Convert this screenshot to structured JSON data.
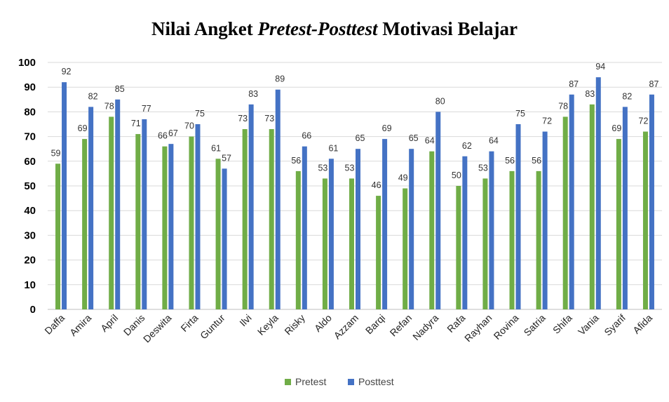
{
  "chart_data": {
    "type": "bar",
    "title_parts": [
      {
        "text": "Nilai Angket ",
        "italic": false
      },
      {
        "text": "Pretest-Posttest",
        "italic": true
      },
      {
        "text": " Motivasi Belajar",
        "italic": false
      }
    ],
    "categories": [
      "Daffa",
      "Amira",
      "April",
      "Danis",
      "Deswita",
      "Firta",
      "Guntur",
      "Ilvi",
      "Keyla",
      "Risky",
      "Aldo",
      "Azzam",
      "Barqi",
      "Refan",
      "Nadyra",
      "Rafa",
      "Rayhan",
      "Rovina",
      "Satria",
      "Shifa",
      "Vania",
      "Syarif",
      "Afida"
    ],
    "series": [
      {
        "name": "Pretest",
        "color": "#70AD47",
        "values": [
          59,
          69,
          78,
          71,
          66,
          70,
          61,
          73,
          73,
          56,
          53,
          53,
          46,
          49,
          64,
          50,
          53,
          56,
          56,
          78,
          83,
          69,
          72
        ]
      },
      {
        "name": "Posttest",
        "color": "#4472C4",
        "values": [
          92,
          82,
          85,
          77,
          67,
          75,
          57,
          83,
          89,
          66,
          61,
          65,
          69,
          65,
          80,
          62,
          64,
          75,
          72,
          87,
          94,
          82,
          87
        ]
      }
    ],
    "y_ticks": [
      "0",
      "10",
      "20",
      "30",
      "40",
      "50",
      "60",
      "70",
      "80",
      "90",
      "100"
    ],
    "ylim": [
      0,
      100
    ],
    "grid": true,
    "legend_position": "bottom",
    "data_labels": true
  }
}
